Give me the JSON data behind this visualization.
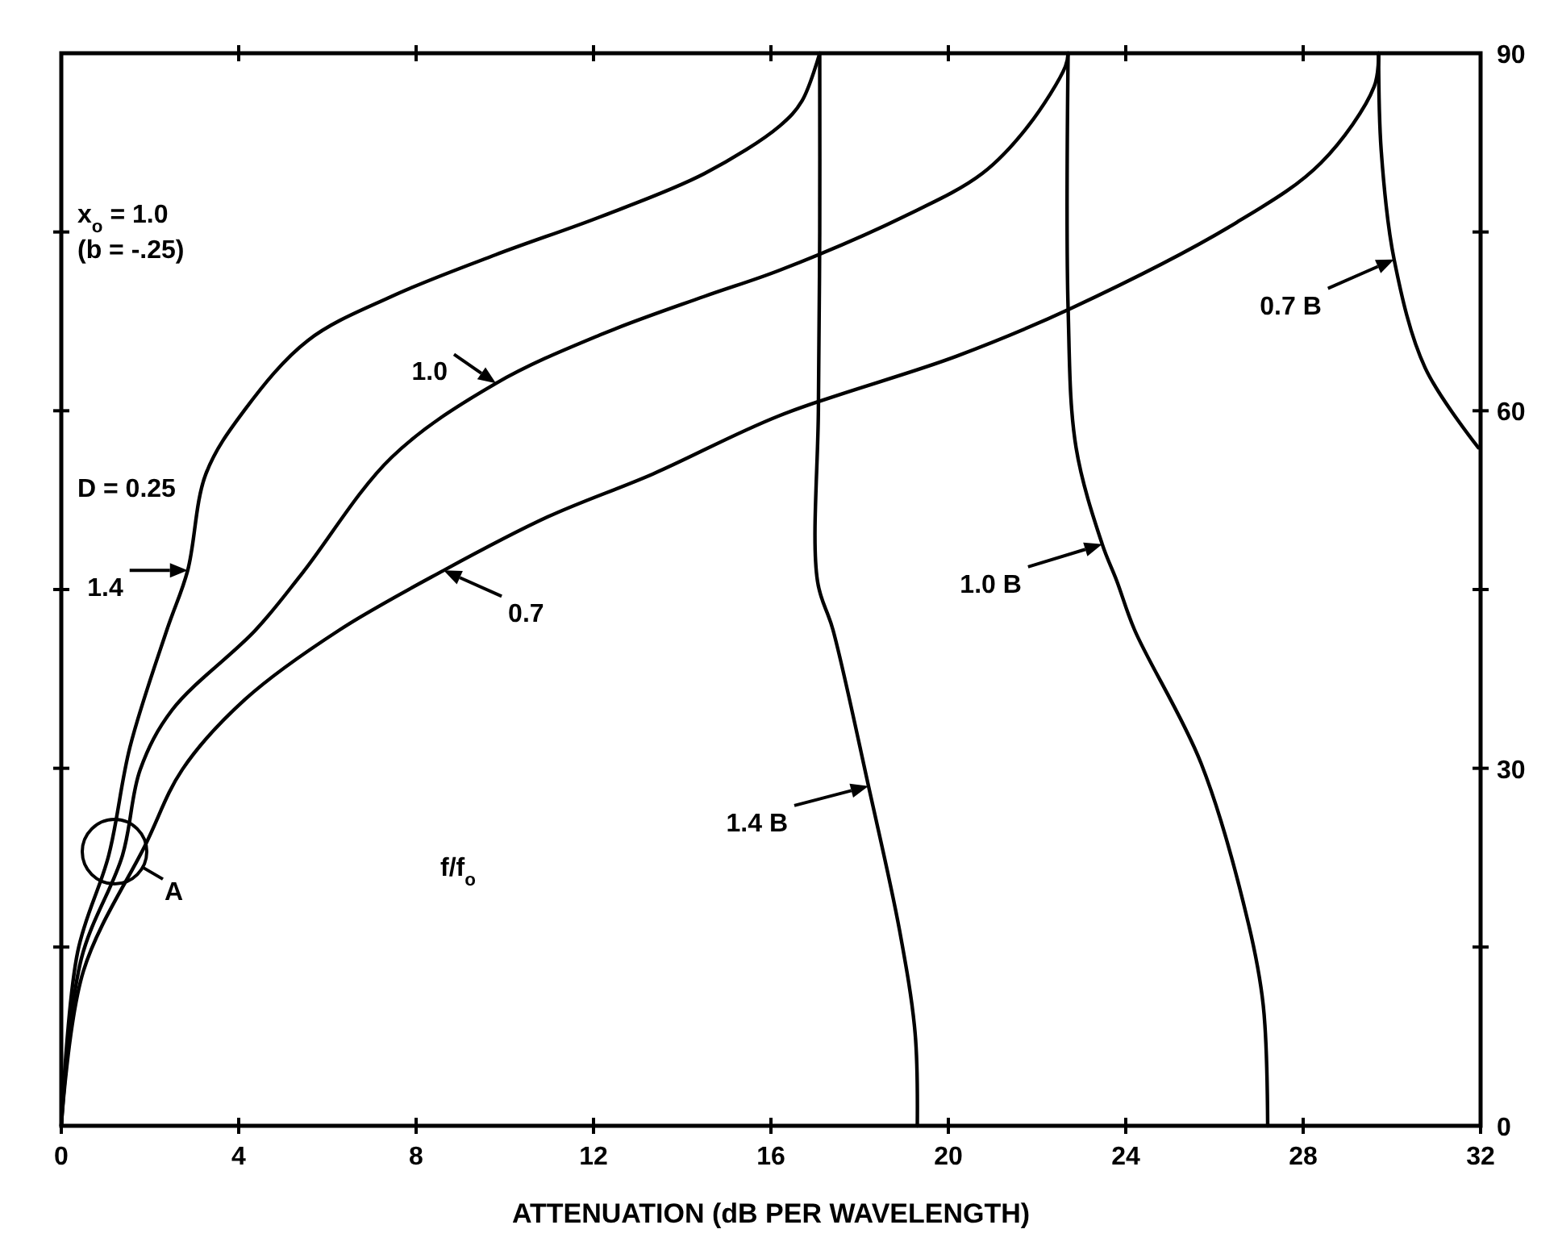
{
  "chart_data": {
    "type": "line",
    "xlabel": "ATTENUATION (dB PER WAVELENGTH)",
    "xlim": [
      0,
      32
    ],
    "xticks": [
      0,
      4,
      8,
      12,
      16,
      20,
      24,
      28,
      32
    ],
    "ylim": [
      0,
      90
    ],
    "yticks": [
      0,
      {
        "value": 15,
        "label": null
      },
      30,
      {
        "value": 45,
        "label": null
      },
      60,
      {
        "value": 75,
        "label": null
      },
      90
    ],
    "series": [
      {
        "name": "1.4",
        "color": "#000000",
        "x": [
          0,
          0.37,
          1.07,
          1.55,
          2.38,
          2.85,
          3.26,
          4.14,
          5.56,
          7.45,
          9.8,
          12.17,
          14.5,
          16.2,
          16.7,
          17.1
        ],
        "values": [
          0,
          14.6,
          22.7,
          31.8,
          41.6,
          46.6,
          54.7,
          60.1,
          65.9,
          69.6,
          73.1,
          76.3,
          79.9,
          83.9,
          86,
          90
        ]
      },
      {
        "name": "1.0",
        "color": "#000000",
        "x": [
          0,
          0.45,
          1.38,
          1.78,
          2.5,
          4.38,
          5.44,
          7.45,
          9.8,
          12.17,
          14.5,
          16.2,
          19.0,
          20.76,
          21.8,
          22.64,
          22.7
        ],
        "values": [
          0,
          14,
          22.7,
          29.9,
          34.9,
          41.6,
          46.4,
          56.1,
          62.3,
          66.4,
          69.6,
          71.8,
          76.3,
          79.9,
          83.9,
          88.9,
          90
        ]
      },
      {
        "name": "0.7",
        "color": "#000000",
        "x": [
          0,
          0.5,
          1.9,
          2.73,
          4.15,
          6.27,
          8.62,
          10.97,
          13.34,
          16.2,
          20.2,
          22.77,
          26.5,
          28.4,
          29.6,
          29.7
        ],
        "values": [
          0,
          13,
          23.6,
          29.9,
          35.8,
          41.6,
          46.6,
          51.1,
          54.7,
          59.6,
          64.6,
          68.6,
          75.8,
          80.8,
          87.2,
          90
        ]
      },
      {
        "name": "1.4 B",
        "color": "#000000",
        "x": [
          19.3,
          19.25,
          18.9,
          18.2,
          17.4,
          17.05,
          17.07,
          17.1,
          17.1
        ],
        "values": [
          0,
          7.8,
          16.4,
          28.5,
          41.6,
          45.7,
          60.1,
          75,
          90
        ]
      },
      {
        "name": "1.0 B",
        "color": "#000000",
        "x": [
          27.2,
          27.1,
          26.77,
          25.7,
          24.2,
          23.8,
          23.47,
          22.88,
          22.7,
          22.7
        ],
        "values": [
          0,
          10.1,
          16.9,
          30.4,
          41.6,
          45.7,
          48.8,
          56.9,
          68.6,
          90
        ]
      },
      {
        "name": "0.7 B",
        "color": "#000000",
        "x": [
          31.95,
          30.75,
          30.05,
          29.76,
          29.7
        ],
        "values": [
          56.9,
          63.6,
          72.7,
          81.8,
          90
        ]
      }
    ],
    "annotations": [
      "D = 0.25",
      "x$_{o}$ = 1.0",
      "(b = -.25)",
      "f/f$_{o}$",
      {
        "text": "A",
        "x": 1.2,
        "y": 23
      }
    ]
  }
}
